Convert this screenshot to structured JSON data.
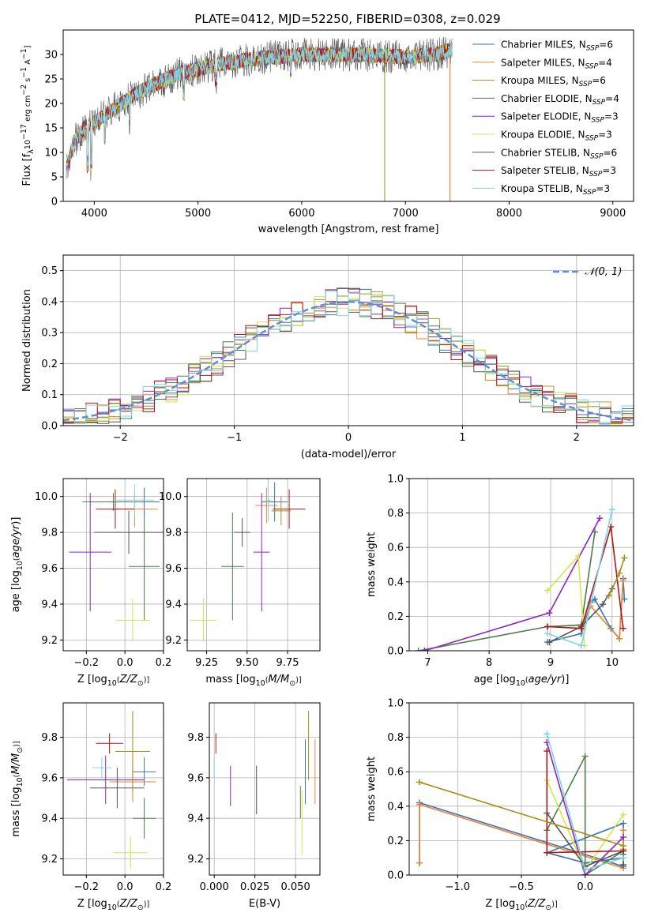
{
  "figure": {
    "title": "PLATE=0412, MJD=52250, FIBERID=0308, z=0.029"
  },
  "models": [
    {
      "name": "Chabrier MILES",
      "nssp": "6",
      "color": "#3b75af"
    },
    {
      "name": "Salpeter MILES",
      "nssp": "4",
      "color": "#ed8536"
    },
    {
      "name": "Kroupa MILES",
      "nssp": "6",
      "color": "#ad8b17"
    },
    {
      "name": "Chabrier ELODIE",
      "nssp": "4",
      "color": "#4d7c4d"
    },
    {
      "name": "Salpeter ELODIE",
      "nssp": "3",
      "color": "#8e24c2"
    },
    {
      "name": "Kroupa ELODIE",
      "nssp": "3",
      "color": "#d4e64c"
    },
    {
      "name": "Chabrier STELIB",
      "nssp": "6",
      "color": "#555555"
    },
    {
      "name": "Salpeter STELIB",
      "nssp": "3",
      "color": "#b01515"
    },
    {
      "name": "Kroupa STELIB",
      "nssp": "3",
      "color": "#7fd4e0"
    }
  ],
  "chart_data": [
    {
      "id": "spectrum",
      "type": "line",
      "xlabel": "wavelength [Angstrom, rest frame]",
      "ylabel": "Flux [f",
      "ylabel_parts": [
        "Flux [f",
        "λ",
        "10",
        "−17",
        " erg cm",
        "−2",
        " s",
        "−1",
        " A",
        "−1",
        "]"
      ],
      "xlim": [
        3700,
        9200
      ],
      "ylim": [
        0,
        35
      ],
      "xticks": [
        4000,
        5000,
        6000,
        7000,
        8000,
        9000
      ],
      "yticks": [
        0,
        5,
        10,
        15,
        20,
        25,
        30
      ],
      "continuum": {
        "x": [
          3750,
          3800,
          3900,
          4000,
          4200,
          4400,
          4600,
          4800,
          5000,
          5200,
          5500,
          6000,
          6500,
          7000,
          7300,
          7450
        ],
        "y": [
          8,
          12,
          15,
          16,
          19,
          22,
          24,
          26,
          27,
          28,
          29,
          30,
          30,
          29.5,
          30,
          31
        ]
      },
      "x_range_data": [
        3730,
        7450
      ],
      "legend": "upper right",
      "grid": false
    },
    {
      "id": "residuals",
      "type": "line",
      "xlabel": "(data-model)/error",
      "ylabel": "Normed distribution",
      "xlim": [
        -2.5,
        2.5
      ],
      "ylim": [
        0,
        0.55
      ],
      "xticks": [
        -2,
        -1,
        0,
        1,
        2
      ],
      "xtick_labels": [
        "−2",
        "−1",
        "0",
        "1",
        "2"
      ],
      "yticks": [
        0.0,
        0.1,
        0.2,
        0.3,
        0.4,
        0.5
      ],
      "gaussian_label": "𝒩(0, 1)",
      "gaussian_color": "#5b8fd9",
      "legend": "upper right",
      "grid": true
    },
    {
      "id": "age-vs-Z",
      "type": "scatter",
      "xlabel": "Z [log",
      "ylabel": "age  [log",
      "xlim": [
        -0.32,
        0.2
      ],
      "ylim": [
        9.14,
        10.1
      ],
      "xticks": [
        -0.2,
        0.0,
        0.2
      ],
      "xtick_labels": [
        "−0.2",
        "0.0",
        "0.2"
      ],
      "yticks": [
        9.2,
        9.4,
        9.6,
        9.8,
        10.0
      ],
      "points": [
        {
          "m": 0,
          "x": 0.1,
          "xerr": 0.08,
          "y": 9.97,
          "yerr": 0.08
        },
        {
          "m": 1,
          "x": 0.05,
          "xerr": 0.12,
          "y": 9.93,
          "yerr": 0.1
        },
        {
          "m": 3,
          "x": -0.06,
          "xerr": 0.16,
          "y": 9.97,
          "yerr": 0.05
        },
        {
          "m": 3,
          "x": 0.1,
          "xerr": 0.08,
          "y": 9.61,
          "yerr": 0.3
        },
        {
          "m": 4,
          "x": -0.18,
          "xerr": 0.11,
          "y": 9.69,
          "yerr": 0.33
        },
        {
          "m": 5,
          "x": 0.04,
          "xerr": 0.09,
          "y": 9.31,
          "yerr": 0.12
        },
        {
          "m": 6,
          "x": 0.02,
          "xerr": 0.18,
          "y": 9.8,
          "yerr": 0.12
        },
        {
          "m": 7,
          "x": -0.05,
          "xerr": 0.1,
          "y": 9.93,
          "yerr": 0.11
        },
        {
          "m": 8,
          "x": 0.05,
          "xerr": 0.1,
          "y": 9.98,
          "yerr": 0.09
        }
      ],
      "grid": true
    },
    {
      "id": "age-vs-mass",
      "type": "scatter",
      "xlabel": "mass [log",
      "ylabel": "",
      "xlim": [
        9.13,
        9.95
      ],
      "ylim": [
        9.14,
        10.1
      ],
      "xticks": [
        9.25,
        9.5,
        9.75
      ],
      "xtick_labels": [
        "9.25",
        "9.50",
        "9.75"
      ],
      "yticks": [
        9.2,
        9.4,
        9.6,
        9.8,
        10.0
      ],
      "points": [
        {
          "m": 0,
          "x": 9.67,
          "xerr": 0.08,
          "y": 9.97,
          "yerr": 0.11
        },
        {
          "m": 1,
          "x": 9.62,
          "xerr": 0.07,
          "y": 9.95,
          "yerr": 0.1
        },
        {
          "m": 3,
          "x": 9.41,
          "xerr": 0.07,
          "y": 9.61,
          "yerr": 0.3
        },
        {
          "m": 4,
          "x": 9.59,
          "xerr": 0.05,
          "y": 9.69,
          "yerr": 0.33
        },
        {
          "m": 5,
          "x": 9.23,
          "xerr": 0.08,
          "y": 9.31,
          "yerr": 0.12
        },
        {
          "m": 6,
          "x": 9.47,
          "xerr": 0.05,
          "y": 9.8,
          "yerr": 0.08
        },
        {
          "m": 7,
          "x": 9.76,
          "xerr": 0.1,
          "y": 9.93,
          "yerr": 0.11
        },
        {
          "m": 8,
          "x": 9.63,
          "xerr": 0.02,
          "y": 9.98,
          "yerr": 0.12
        },
        {
          "m": 2,
          "x": 9.71,
          "xerr": 0.06,
          "y": 9.92,
          "yerr": 0.08
        }
      ],
      "grid": true
    },
    {
      "id": "weight-vs-age",
      "type": "line",
      "xlabel": "age  [log",
      "ylabel": "mass weight",
      "xlim": [
        6.7,
        10.35
      ],
      "ylim": [
        0,
        1.0
      ],
      "xticks": [
        7,
        8,
        9,
        10
      ],
      "yticks": [
        0.0,
        0.2,
        0.4,
        0.6,
        0.8,
        1.0
      ],
      "lines": [
        {
          "m": 0,
          "x": [
            8.95,
            9.5,
            9.65,
            9.72,
            9.98,
            10.12,
            10.18,
            10.2
          ],
          "y": [
            0.05,
            0.1,
            0.28,
            0.3,
            0.13,
            0.07,
            0.42,
            0.3
          ]
        },
        {
          "m": 1,
          "x": [
            8.95,
            9.5,
            9.65,
            10.12,
            10.18
          ],
          "y": [
            0.14,
            0.15,
            0.26,
            0.07,
            0.41
          ]
        },
        {
          "m": 3,
          "x": [
            6.85,
            8.95,
            9.5,
            9.72
          ],
          "y": [
            0.0,
            0.14,
            0.15,
            0.69
          ]
        },
        {
          "m": 4,
          "x": [
            6.95,
            8.98,
            9.8
          ],
          "y": [
            0.0,
            0.22,
            0.77
          ]
        },
        {
          "m": 5,
          "x": [
            8.95,
            9.45,
            9.55
          ],
          "y": [
            0.35,
            0.55,
            0.03
          ]
        },
        {
          "m": 6,
          "x": [
            8.98,
            9.5,
            9.85,
            10.0
          ],
          "y": [
            0.05,
            0.14,
            0.27,
            0.36
          ]
        },
        {
          "m": 7,
          "x": [
            8.95,
            9.5,
            9.98,
            10.18
          ],
          "y": [
            0.14,
            0.13,
            0.72,
            0.13
          ]
        },
        {
          "m": 8,
          "x": [
            8.95,
            9.5,
            10.0
          ],
          "y": [
            0.1,
            0.03,
            0.82
          ]
        },
        {
          "m": 2,
          "x": [
            9.95,
            10.12,
            10.2
          ],
          "y": [
            0.32,
            0.45,
            0.54
          ]
        }
      ],
      "grid": true
    },
    {
      "id": "mass-vs-Z",
      "type": "scatter",
      "xlabel": "Z [log",
      "ylabel": "mass [log",
      "xlim": [
        -0.32,
        0.2
      ],
      "ylim": [
        9.12,
        9.97
      ],
      "xticks": [
        -0.2,
        0.0,
        0.2
      ],
      "xtick_labels": [
        "−0.2",
        "0.0",
        "0.2"
      ],
      "yticks": [
        9.2,
        9.4,
        9.6,
        9.8
      ],
      "points": [
        {
          "m": 0,
          "x": 0.1,
          "xerr": 0.06,
          "y": 9.63,
          "yerr": 0.07
        },
        {
          "m": 1,
          "x": 0.04,
          "xerr": 0.12,
          "y": 9.58,
          "yerr": 0.1
        },
        {
          "m": 3,
          "x": 0.1,
          "xerr": 0.06,
          "y": 9.4,
          "yerr": 0.1
        },
        {
          "m": 4,
          "x": -0.1,
          "xerr": 0.2,
          "y": 9.59,
          "yerr": 0.12
        },
        {
          "m": 5,
          "x": 0.03,
          "xerr": 0.09,
          "y": 9.23,
          "yerr": 0.08
        },
        {
          "m": 6,
          "x": -0.04,
          "xerr": 0.14,
          "y": 9.55,
          "yerr": 0.1
        },
        {
          "m": 7,
          "x": -0.08,
          "xerr": 0.07,
          "y": 9.77,
          "yerr": 0.05
        },
        {
          "m": 8,
          "x": -0.12,
          "xerr": 0.05,
          "y": 9.65,
          "yerr": 0.05
        },
        {
          "m": 2,
          "x": 0.04,
          "xerr": 0.09,
          "y": 9.73,
          "yerr": 0.2
        }
      ],
      "grid": true
    },
    {
      "id": "mass-vs-EBV",
      "type": "scatter",
      "xlabel": "E(B-V)",
      "ylabel": "",
      "xlim": [
        -0.003,
        0.065
      ],
      "ylim": [
        9.12,
        9.97
      ],
      "xticks": [
        0.0,
        0.025,
        0.05
      ],
      "xtick_labels": [
        "0.000",
        "0.025",
        "0.050"
      ],
      "yticks": [
        9.2,
        9.4,
        9.6,
        9.8
      ],
      "points": [
        {
          "m": 0,
          "x": 0.056,
          "xerr": 0,
          "y": 9.63,
          "yerr": 0.16
        },
        {
          "m": 1,
          "x": 0.062,
          "xerr": 0,
          "y": 9.63,
          "yerr": 0.16
        },
        {
          "m": 3,
          "x": 0.053,
          "xerr": 0,
          "y": 9.48,
          "yerr": 0.08
        },
        {
          "m": 4,
          "x": 0.01,
          "xerr": 0,
          "y": 9.56,
          "yerr": 0.1
        },
        {
          "m": 5,
          "x": 0.054,
          "xerr": 0,
          "y": 9.38,
          "yerr": 0.16
        },
        {
          "m": 6,
          "x": 0.026,
          "xerr": 0,
          "y": 9.54,
          "yerr": 0.12
        },
        {
          "m": 7,
          "x": 0.001,
          "xerr": 0,
          "y": 9.77,
          "yerr": 0.05
        },
        {
          "m": 8,
          "x": 0.0,
          "xerr": 0,
          "y": 9.65,
          "yerr": 0.05
        },
        {
          "m": 2,
          "x": 0.058,
          "xerr": 0,
          "y": 9.76,
          "yerr": 0.17
        }
      ],
      "grid": true
    },
    {
      "id": "weight-vs-Z",
      "type": "line",
      "xlabel": "Z [log",
      "ylabel": "mass weight",
      "xlim": [
        -1.38,
        0.38
      ],
      "ylim": [
        0,
        1.0
      ],
      "xticks": [
        -1.0,
        -0.5,
        0.0
      ],
      "xtick_labels": [
        "−1.0",
        "−0.5",
        "0.0"
      ],
      "yticks": [
        0.0,
        0.2,
        0.4,
        0.6,
        0.8,
        1.0
      ],
      "lines": [
        {
          "m": 0,
          "x": [
            -1.3,
            -1.3,
            0.3,
            0.3,
            -0.3,
            0.0,
            0.3,
            0.3
          ],
          "y": [
            0.07,
            0.42,
            0.05,
            0.3,
            0.13,
            0.07,
            0.1,
            0.12
          ]
        },
        {
          "m": 1,
          "x": [
            -1.3,
            -1.3,
            0.3,
            0.3,
            0.3
          ],
          "y": [
            0.07,
            0.41,
            0.04,
            0.15,
            0.26
          ]
        },
        {
          "m": 3,
          "x": [
            -0.3,
            0.0,
            0.0,
            0.3
          ],
          "y": [
            0.26,
            0.69,
            0.0,
            0.14
          ]
        },
        {
          "m": 4,
          "x": [
            -0.3,
            0.0,
            0.3
          ],
          "y": [
            0.77,
            0.0,
            0.22
          ]
        },
        {
          "m": 5,
          "x": [
            -0.3,
            0.0,
            0.3
          ],
          "y": [
            0.55,
            0.03,
            0.35
          ]
        },
        {
          "m": 6,
          "x": [
            -0.3,
            0.0,
            0.3,
            0.3
          ],
          "y": [
            0.36,
            0.05,
            0.14,
            0.06
          ]
        },
        {
          "m": 7,
          "x": [
            -0.3,
            -0.3,
            0.3
          ],
          "y": [
            0.72,
            0.13,
            0.14
          ]
        },
        {
          "m": 8,
          "x": [
            -0.3,
            0.0,
            0.3
          ],
          "y": [
            0.82,
            0.03,
            0.1
          ]
        },
        {
          "m": 2,
          "x": [
            -1.3,
            0.3
          ],
          "y": [
            0.54,
            0.17
          ]
        }
      ],
      "grid": true
    }
  ]
}
